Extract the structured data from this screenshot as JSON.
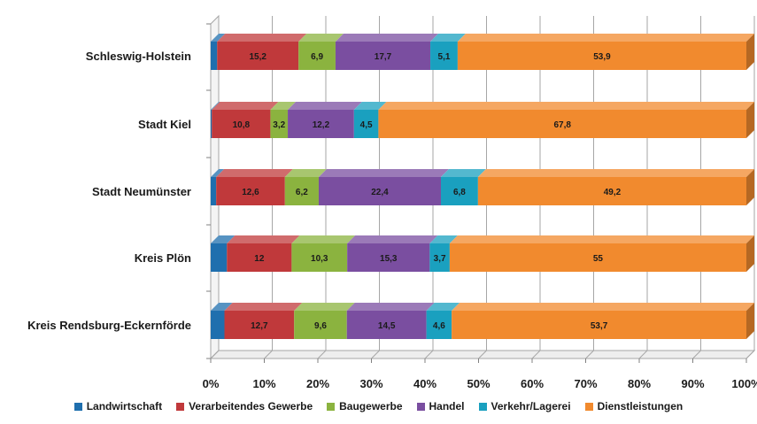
{
  "chart_data": {
    "type": "bar",
    "orientation": "horizontal",
    "stacked": "percent",
    "grid": true,
    "legend_position": "bottom",
    "xlim": [
      0,
      100
    ],
    "x_ticks": [
      "0%",
      "10%",
      "20%",
      "30%",
      "40%",
      "50%",
      "60%",
      "70%",
      "80%",
      "90%",
      "100%"
    ],
    "categories": [
      "Schleswig-Holstein",
      "Stadt Kiel",
      "Stadt Neumünster",
      "Kreis Plön",
      "Kreis Rendsburg-Eckernförde"
    ],
    "series": [
      {
        "name": "Landwirtschaft",
        "color": "#1f6fae",
        "values": [
          1.2,
          0.2,
          1.0,
          3.0,
          2.5
        ],
        "labels": [
          "",
          "",
          "",
          "",
          ""
        ]
      },
      {
        "name": "Verarbeitendes Gewerbe",
        "color": "#c0393b",
        "values": [
          15.2,
          10.8,
          12.6,
          12,
          12.7
        ],
        "labels": [
          "15,2",
          "10,8",
          "12,6",
          "12",
          "12,7"
        ]
      },
      {
        "name": "Baugewerbe",
        "color": "#8bb33f",
        "values": [
          6.9,
          3.2,
          6.2,
          10.3,
          9.6
        ],
        "labels": [
          "6,9",
          "3,2",
          "6,2",
          "10,3",
          "9,6"
        ]
      },
      {
        "name": "Handel",
        "color": "#7a4ea0",
        "values": [
          17.7,
          12.2,
          22.4,
          15.3,
          14.5
        ],
        "labels": [
          "17,7",
          "12,2",
          "22,4",
          "15,3",
          "14,5"
        ]
      },
      {
        "name": "Verkehr/Lagerei",
        "color": "#1aa0bf",
        "values": [
          5.1,
          4.5,
          6.8,
          3.7,
          4.6
        ],
        "labels": [
          "5,1",
          "4,5",
          "6,8",
          "3,7",
          "4,6"
        ]
      },
      {
        "name": "Dienstleistungen",
        "color": "#f18a2e",
        "values": [
          53.9,
          67.8,
          49.2,
          55,
          53.7
        ],
        "labels": [
          "53,9",
          "67,8",
          "49,2",
          "55",
          "53,7"
        ]
      }
    ]
  }
}
